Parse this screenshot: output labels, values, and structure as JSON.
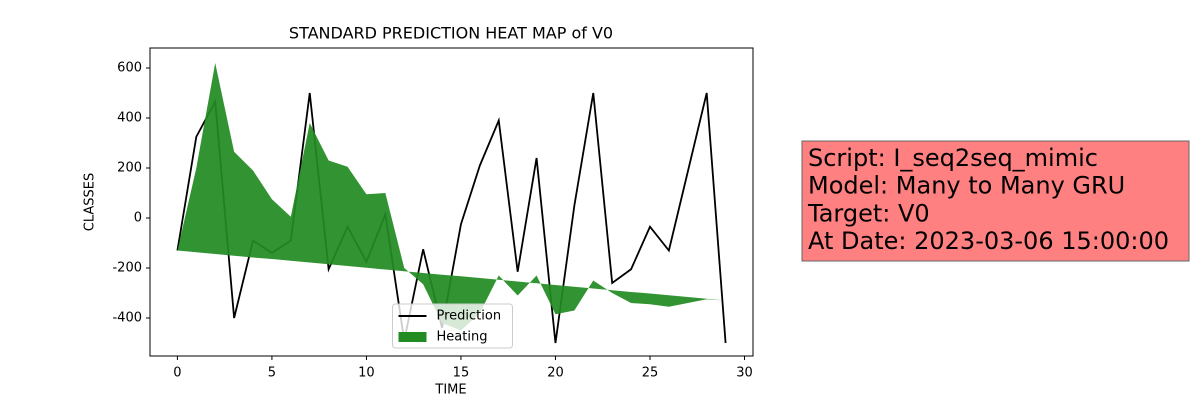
{
  "chart_data": {
    "type": "line_fill",
    "title": "STANDARD PREDICTION HEAT MAP of V0",
    "x_label": "TIME",
    "y_label": "CLASSES",
    "x": [
      0,
      1,
      2,
      3,
      4,
      5,
      6,
      7,
      8,
      9,
      10,
      11,
      12,
      13,
      14,
      15,
      16,
      17,
      18,
      19,
      20,
      21,
      22,
      23,
      24,
      25,
      26,
      27,
      28,
      29
    ],
    "series": [
      {
        "name": "Prediction",
        "color": "#000000",
        "values": [
          -130,
          325,
          465,
          -400,
          -90,
          -140,
          -90,
          500,
          -205,
          -35,
          -175,
          15,
          -490,
          -125,
          -440,
          -25,
          210,
          390,
          -215,
          240,
          -500,
          50,
          500,
          -260,
          -205,
          -35,
          -130,
          185,
          500,
          -500
        ]
      },
      {
        "name": "Heating",
        "color": "#228b22",
        "values": [
          -130,
          200,
          620,
          265,
          190,
          75,
          5,
          380,
          230,
          205,
          95,
          100,
          -200,
          -265,
          -420,
          -450,
          -380,
          -230,
          -310,
          -230,
          -385,
          -370,
          -250,
          -300,
          -340,
          -345,
          -355,
          -340,
          -325,
          -330
        ],
        "lower": [
          -130,
          -137,
          -144,
          -151,
          -158,
          -164,
          -171,
          -178,
          -185,
          -192,
          -199,
          -206,
          -213,
          -220,
          -227,
          -233,
          -240,
          -247,
          -254,
          -261,
          -268,
          -275,
          -282,
          -289,
          -296,
          -302,
          -309,
          -316,
          -323,
          -330
        ]
      }
    ],
    "xlim": [
      -1.45,
      30.45
    ],
    "ylim": [
      -552,
      680
    ],
    "xticks": [
      0,
      5,
      10,
      15,
      20,
      25,
      30
    ],
    "yticks": [
      -400,
      -200,
      0,
      200,
      400,
      600
    ],
    "legend": "lower center",
    "annotation": [
      "Script: I_seq2seq_mimic",
      "Model: Many to Many GRU",
      "Target: V0",
      "At Date: 2023-03-06 15:00:00"
    ]
  }
}
